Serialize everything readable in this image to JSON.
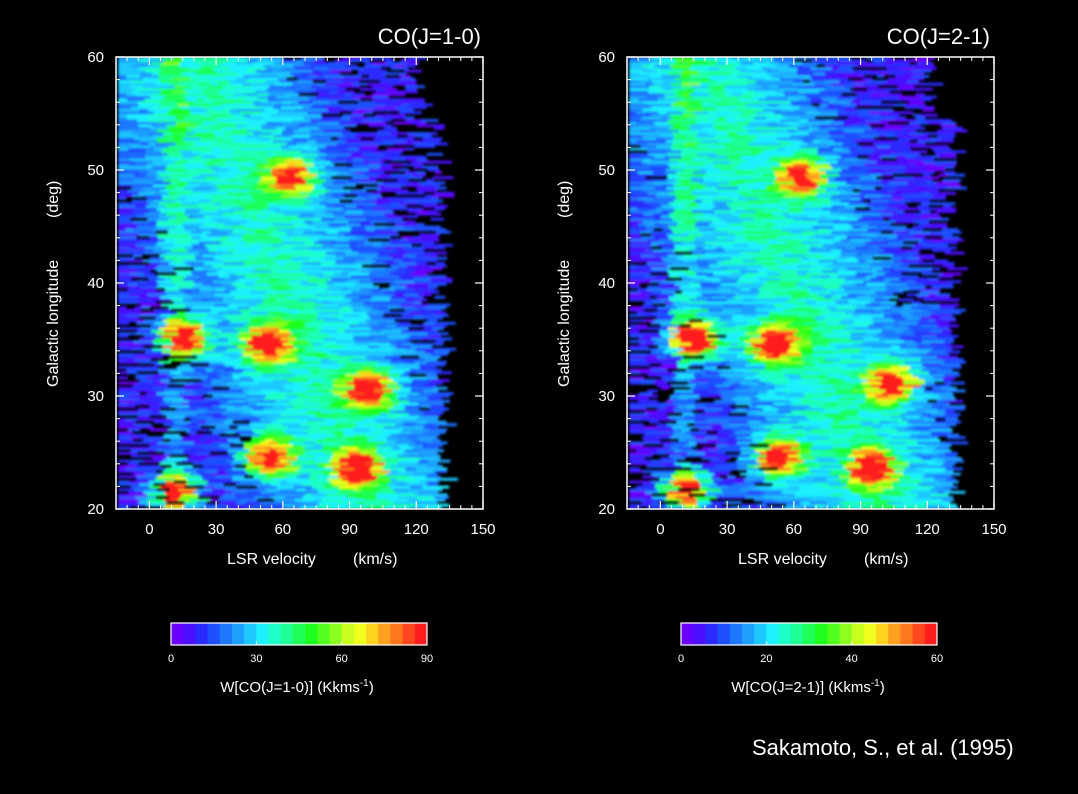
{
  "chart_data": [
    {
      "type": "heatmap",
      "title": "CO(J=1-0)",
      "xlabel": "LSR velocity",
      "xunit": "(km/s)",
      "ylabel": "Galactic longitude",
      "yunit": "(deg)",
      "xlim": [
        -15,
        150
      ],
      "ylim": [
        20,
        60
      ],
      "xticks": [
        0,
        30,
        60,
        90,
        120,
        150
      ],
      "yticks": [
        20,
        30,
        40,
        50,
        60
      ],
      "colorbar": {
        "label": "W[CO(J=1-0)]  (Kkms",
        "unit_sup": "-1",
        "label_end": ")",
        "min": 0,
        "max": 90,
        "ticks": [
          0,
          30,
          60,
          90
        ]
      },
      "peaks": [
        {
          "x": 8,
          "y": 21.5,
          "value": 85
        },
        {
          "x": 12,
          "y": 35,
          "value": 90
        },
        {
          "x": 50,
          "y": 34.5,
          "value": 85
        },
        {
          "x": 95,
          "y": 30.5,
          "value": 85
        },
        {
          "x": 50,
          "y": 24.5,
          "value": 85
        },
        {
          "x": 90,
          "y": 23.5,
          "value": 80
        },
        {
          "x": 60,
          "y": 49.3,
          "value": 70
        }
      ]
    },
    {
      "type": "heatmap",
      "title": "CO(J=2-1)",
      "xlabel": "LSR velocity",
      "xunit": "(km/s)",
      "ylabel": "Galactic longitude",
      "yunit": "(deg)",
      "xlim": [
        -15,
        150
      ],
      "ylim": [
        20,
        60
      ],
      "xticks": [
        0,
        30,
        60,
        90,
        120,
        150
      ],
      "yticks": [
        20,
        30,
        40,
        50,
        60
      ],
      "colorbar": {
        "label": "W[CO(J=2-1)]  (Kkms",
        "unit_sup": "-1",
        "label_end": ")",
        "min": 0,
        "max": 60,
        "ticks": [
          0,
          20,
          40,
          60
        ]
      },
      "peaks": [
        {
          "x": 8,
          "y": 21.5,
          "value": 55
        },
        {
          "x": 12,
          "y": 35,
          "value": 60
        },
        {
          "x": 48,
          "y": 34.5,
          "value": 55
        },
        {
          "x": 100,
          "y": 31,
          "value": 58
        },
        {
          "x": 50,
          "y": 24.5,
          "value": 55
        },
        {
          "x": 92,
          "y": 23.5,
          "value": 52
        },
        {
          "x": 60,
          "y": 49.3,
          "value": 50
        }
      ]
    }
  ],
  "credit": "Sakamoto, S., et al. (1995)",
  "colors": {
    "background": "#000000",
    "text": "#ffffff"
  }
}
